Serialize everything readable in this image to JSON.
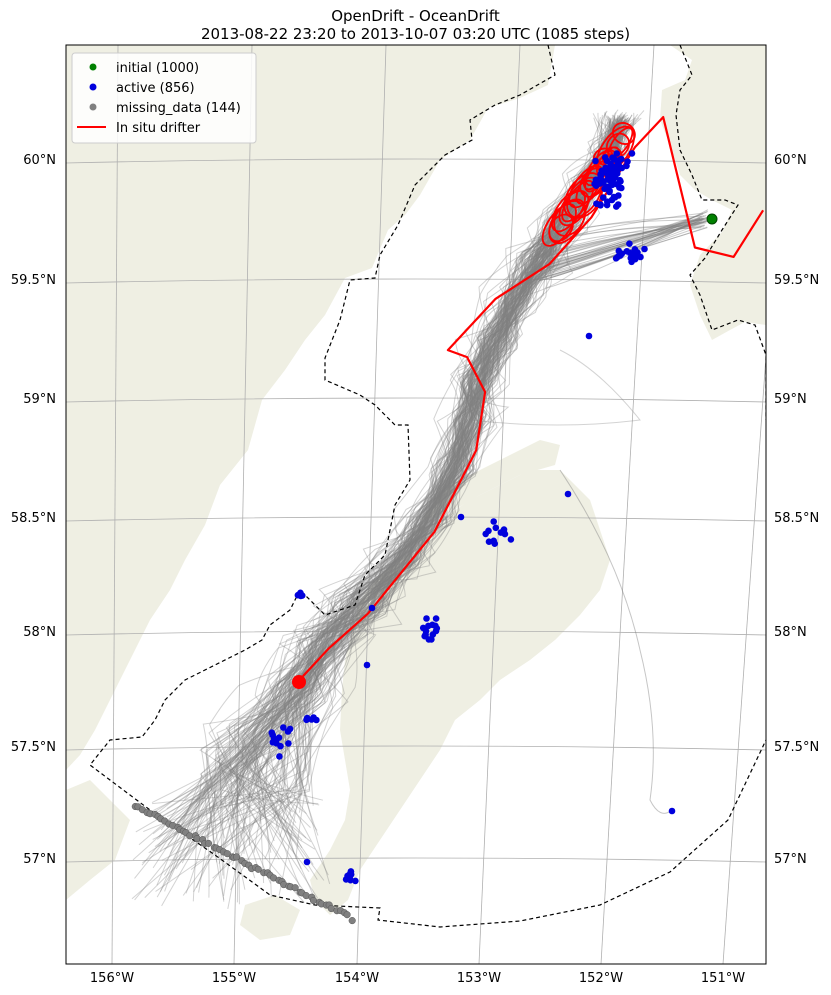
{
  "title": "OpenDrift - OceanDrift",
  "subtitle": "2013-08-22 23:20 to 2013-10-07 03:20 UTC (1085 steps)",
  "colors": {
    "land": "#efefe3",
    "trajectory": "#808080",
    "initial": "#008000",
    "active": "#0000dd",
    "missing": "#808080",
    "drifter": "#ff0000",
    "grid": "#b0b0b0"
  },
  "chart_data": {
    "type": "scatter",
    "map_projection": "stereographic",
    "grid": true,
    "legend_position": "top-left",
    "x_ticks": [
      "156°W",
      "155°W",
      "154°W",
      "153°W",
      "152°W",
      "151°W"
    ],
    "y_ticks": [
      "57°N",
      "57.5°N",
      "58°N",
      "58.5°N",
      "59°N",
      "59.5°N",
      "60°N"
    ],
    "legend": [
      {
        "label": "initial (1000)",
        "marker": "dot",
        "color": "#008000"
      },
      {
        "label": "active (856)",
        "marker": "dot",
        "color": "#0000dd"
      },
      {
        "label": "missing_data (144)",
        "marker": "dot",
        "color": "#808080"
      },
      {
        "label": "In situ drifter",
        "marker": "line",
        "color": "#ff0000"
      }
    ],
    "series": [
      {
        "name": "initial (1000)",
        "count": 1000
      },
      {
        "name": "active (856)",
        "count": 856
      },
      {
        "name": "missing_data (144)",
        "count": 144
      },
      {
        "name": "In situ drifter",
        "lon": [
          -154.5,
          -154.3,
          -154.0,
          -153.5,
          -153.2,
          -153.15,
          -153.3,
          -153.45,
          -153.1,
          -152.7,
          -152.4,
          -152.1,
          -151.9,
          -151.6,
          -151.3,
          -151.1
        ],
        "lat": [
          57.78,
          57.9,
          58.05,
          58.4,
          58.75,
          59.0,
          59.15,
          59.18,
          59.4,
          59.55,
          59.75,
          60.05,
          60.18,
          59.62,
          59.58,
          59.78
        ]
      }
    ]
  }
}
